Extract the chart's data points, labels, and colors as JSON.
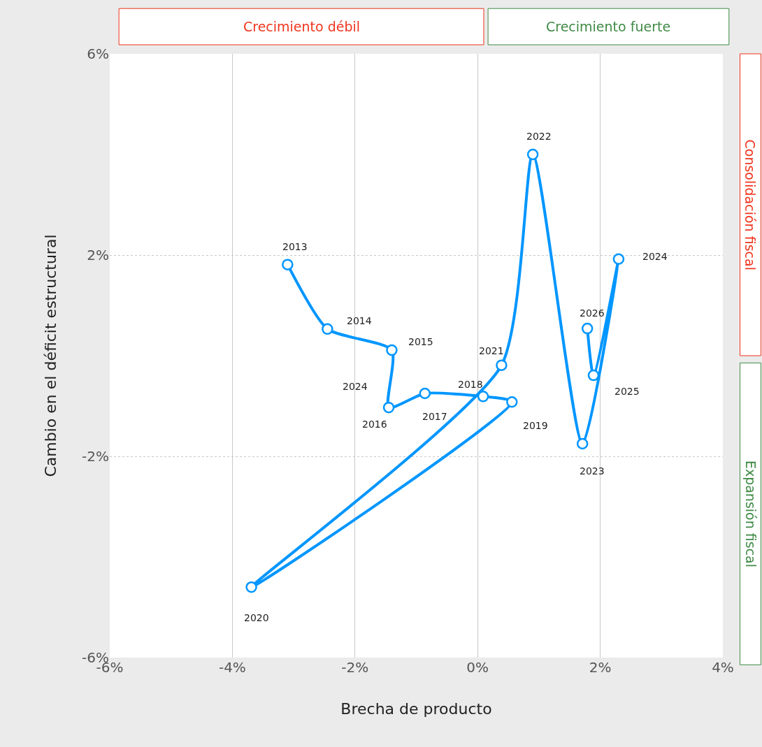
{
  "chart_data": {
    "type": "line",
    "xlabel": "Brecha de producto",
    "ylabel": "Cambio en el déficit estructural",
    "x": [
      -3.1,
      -2.45,
      -1.4,
      -1.45,
      -0.86,
      0.09,
      0.56,
      -3.69,
      0.39,
      0.9,
      1.71,
      2.3,
      1.89,
      1.79
    ],
    "series": [
      {
        "color": "#0096ff",
        "values": [
          1.81,
          0.53,
          0.11,
          -1.03,
          -0.75,
          -0.81,
          -0.92,
          -4.6,
          -0.19,
          4.0,
          -1.75,
          1.92,
          -0.39,
          0.54
        ]
      }
    ],
    "xlim": [
      -6,
      4
    ],
    "xticks": [
      {
        "value": -6,
        "label": "-6%"
      },
      {
        "value": -4,
        "label": "-4%"
      },
      {
        "value": -2,
        "label": "-2%"
      },
      {
        "value": 0,
        "label": "0%"
      },
      {
        "value": 2,
        "label": "2%"
      },
      {
        "value": 4,
        "label": "4%"
      }
    ],
    "ylim": [
      -6,
      6
    ],
    "yticks": [
      {
        "value": -6,
        "label": "-6%"
      },
      {
        "value": -2,
        "label": "-2%"
      },
      {
        "value": 2,
        "label": "2%"
      },
      {
        "value": 6,
        "label": "6%"
      }
    ],
    "grid": true,
    "marker": "circle",
    "line_style": "solid",
    "legend": false,
    "annotations": [
      "Crecimiento débil",
      "Crecimiento fuerte",
      "Consolidación fiscal",
      "Expansión fiscal",
      {
        "text": "2013",
        "x": -3.1,
        "y": 1.81
      },
      {
        "text": "2014",
        "x": -2.45,
        "y": 0.53
      },
      {
        "text": "2015",
        "x": -1.4,
        "y": 0.11
      },
      {
        "text": "2016",
        "x": -1.45,
        "y": -1.03
      },
      {
        "text": "2017",
        "x": -0.86,
        "y": -0.75
      },
      {
        "text": "2018",
        "x": 0.09,
        "y": -0.81
      },
      {
        "text": "2019",
        "x": 0.56,
        "y": -0.92
      },
      {
        "text": "2020",
        "x": -3.69,
        "y": -4.6
      },
      {
        "text": "2021",
        "x": 0.39,
        "y": -0.19
      },
      {
        "text": "2022",
        "x": 0.9,
        "y": 4.0
      },
      {
        "text": "2023",
        "x": 1.71,
        "y": -1.75
      },
      {
        "text": "2024",
        "x": 2.3,
        "y": 1.92
      },
      {
        "text": "2025",
        "x": 1.89,
        "y": -0.39
      },
      {
        "text": "2026",
        "x": 1.79,
        "y": 0.54
      },
      "2024"
    ]
  }
}
